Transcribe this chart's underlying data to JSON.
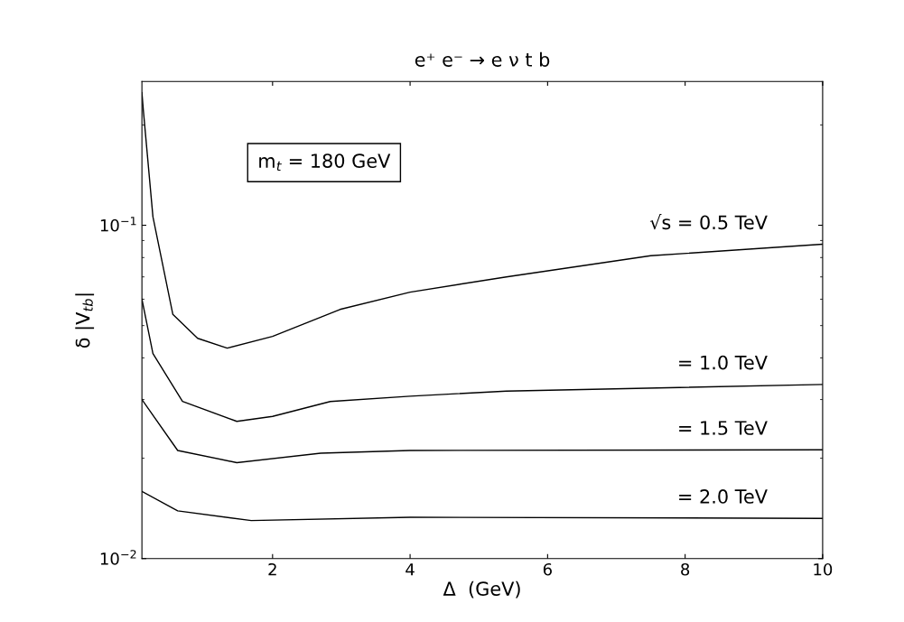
{
  "chart_data": {
    "type": "line",
    "title": "e⁺ e⁻ → e ν t b",
    "xlabel": "Δ  (GeV)",
    "ylabel": "δ |V$_{tb}$|",
    "annotations": [
      "m$_{t}$ = 180 GeV"
    ],
    "log": "y",
    "xlim": [
      0.1,
      10
    ],
    "ylim": [
      0.01,
      0.27
    ],
    "xticks": [
      2,
      4,
      6,
      8,
      10
    ],
    "yticks": [
      {
        "value": 0.01,
        "label": "10$^{−2}$"
      },
      {
        "value": 0.1,
        "label": "10$^{−1}$"
      }
    ],
    "legend": "right",
    "marker": "none",
    "line_style": "solid",
    "series": [
      {
        "name": "√s = 0.5 TeV",
        "color": "#000000",
        "x": [
          0.1,
          0.12,
          0.26,
          0.55,
          0.91,
          1.34,
          2.0,
          2.98,
          4.0,
          5.4,
          7.5,
          10.0
        ],
        "values": [
          0.25,
          0.222,
          0.106,
          0.054,
          0.0458,
          0.0428,
          0.0464,
          0.0559,
          0.063,
          0.07,
          0.081,
          0.0877
        ]
      },
      {
        "name": "= 1.0 TeV",
        "color": "#000000",
        "x": [
          0.1,
          0.26,
          0.69,
          1.48,
          2.0,
          2.84,
          4.0,
          5.4,
          10.0
        ],
        "values": [
          0.06,
          0.0412,
          0.0296,
          0.0258,
          0.0267,
          0.0296,
          0.0307,
          0.0318,
          0.0333
        ]
      },
      {
        "name": "= 1.5 TeV",
        "color": "#000000",
        "x": [
          0.1,
          0.62,
          1.48,
          2.7,
          4.0,
          10.0
        ],
        "values": [
          0.03,
          0.0211,
          0.0194,
          0.0207,
          0.0211,
          0.0212
        ]
      },
      {
        "name": "= 2.0 TeV",
        "color": "#000000",
        "x": [
          0.1,
          0.62,
          1.69,
          4.0,
          10.0
        ],
        "values": [
          0.0159,
          0.0139,
          0.013,
          0.0133,
          0.0132
        ]
      }
    ]
  }
}
